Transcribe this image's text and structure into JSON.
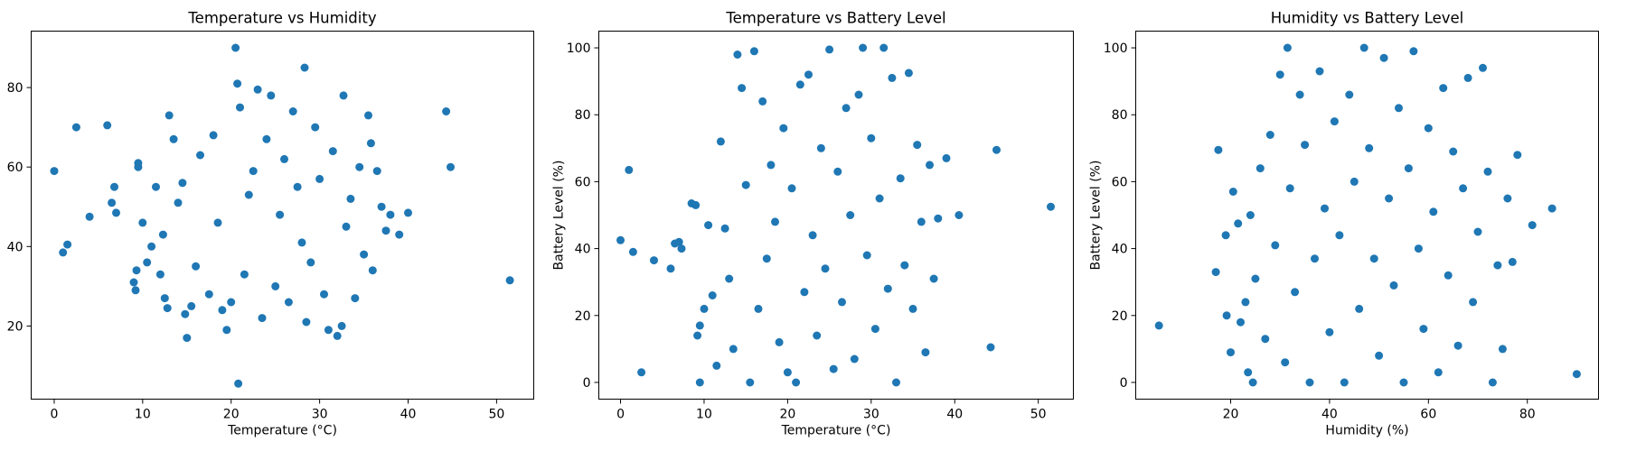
{
  "chart_data": [
    {
      "type": "scatter",
      "title": "Temperature vs Humidity",
      "xlabel": "Temperature (°C)",
      "ylabel": "Humidity (%)",
      "xlim": [
        -2.6,
        54.2
      ],
      "ylim": [
        1.6,
        94.2
      ],
      "xticks": [
        0,
        10,
        20,
        30,
        40,
        50
      ],
      "yticks": [
        20,
        40,
        60,
        80
      ],
      "color": "#1f77b4",
      "series": [
        {
          "name": "Temperature vs Humidity",
          "points": [
            [
              0,
              59
            ],
            [
              1,
              38.5
            ],
            [
              1.5,
              40.5
            ],
            [
              2.5,
              70
            ],
            [
              4,
              47.5
            ],
            [
              6,
              70.5
            ],
            [
              6.5,
              51
            ],
            [
              6.8,
              55
            ],
            [
              7,
              48.5
            ],
            [
              9,
              31
            ],
            [
              9.2,
              29
            ],
            [
              9.3,
              34
            ],
            [
              9.5,
              60
            ],
            [
              9.5,
              61
            ],
            [
              10,
              46
            ],
            [
              10.5,
              36
            ],
            [
              11,
              40
            ],
            [
              11.5,
              55
            ],
            [
              12,
              33
            ],
            [
              12.3,
              43
            ],
            [
              12.5,
              27
            ],
            [
              12.8,
              24.5
            ],
            [
              13,
              73
            ],
            [
              13.5,
              67
            ],
            [
              14,
              51
            ],
            [
              14.5,
              56
            ],
            [
              14.8,
              23
            ],
            [
              15,
              17
            ],
            [
              15.5,
              25
            ],
            [
              16,
              35
            ],
            [
              16.5,
              63
            ],
            [
              17.5,
              28
            ],
            [
              18,
              68
            ],
            [
              18.5,
              46
            ],
            [
              19,
              24
            ],
            [
              19.5,
              19
            ],
            [
              20,
              26
            ],
            [
              20.5,
              90
            ],
            [
              20.7,
              81
            ],
            [
              20.8,
              5.5
            ],
            [
              21,
              75
            ],
            [
              21.5,
              33
            ],
            [
              22,
              53
            ],
            [
              22.5,
              59
            ],
            [
              23,
              79.5
            ],
            [
              23.5,
              22
            ],
            [
              24,
              67
            ],
            [
              24.5,
              78
            ],
            [
              25,
              30
            ],
            [
              25.5,
              48
            ],
            [
              26,
              62
            ],
            [
              26.5,
              26
            ],
            [
              27,
              74
            ],
            [
              27.5,
              55
            ],
            [
              28,
              41
            ],
            [
              28.3,
              85
            ],
            [
              28.5,
              21
            ],
            [
              29,
              36
            ],
            [
              29.5,
              70
            ],
            [
              30,
              57
            ],
            [
              30.5,
              28
            ],
            [
              31,
              19
            ],
            [
              31.5,
              64
            ],
            [
              32,
              17.5
            ],
            [
              32.5,
              20
            ],
            [
              32.7,
              78
            ],
            [
              33,
              45
            ],
            [
              33.5,
              52
            ],
            [
              34,
              27
            ],
            [
              34.5,
              60
            ],
            [
              35,
              38
            ],
            [
              35.5,
              73
            ],
            [
              35.8,
              66
            ],
            [
              36,
              34
            ],
            [
              36.5,
              59
            ],
            [
              37,
              50
            ],
            [
              37.5,
              44
            ],
            [
              38,
              48
            ],
            [
              39,
              43
            ],
            [
              40,
              48.5
            ],
            [
              44.3,
              74
            ],
            [
              44.8,
              60
            ],
            [
              51.5,
              31.5
            ]
          ]
        }
      ]
    },
    {
      "type": "scatter",
      "title": "Temperature vs Battery Level",
      "xlabel": "Temperature (°C)",
      "ylabel": "Battery Level (%)",
      "xlim": [
        -2.6,
        54.2
      ],
      "ylim": [
        -5,
        105
      ],
      "xticks": [
        0,
        10,
        20,
        30,
        40,
        50
      ],
      "yticks": [
        0,
        20,
        40,
        60,
        80,
        100
      ],
      "color": "#1f77b4",
      "series": [
        {
          "name": "Temperature vs Battery Level",
          "points": [
            [
              0,
              42.5
            ],
            [
              1,
              63.5
            ],
            [
              1.5,
              39
            ],
            [
              2.5,
              3
            ],
            [
              4,
              36.5
            ],
            [
              6,
              34
            ],
            [
              6.5,
              41.5
            ],
            [
              7,
              42
            ],
            [
              7.3,
              40
            ],
            [
              8.5,
              53.5
            ],
            [
              9,
              53
            ],
            [
              9.2,
              14
            ],
            [
              9.5,
              17
            ],
            [
              9.5,
              0
            ],
            [
              10,
              22
            ],
            [
              10.5,
              47
            ],
            [
              11,
              26
            ],
            [
              11.5,
              5
            ],
            [
              12,
              72
            ],
            [
              12.5,
              46
            ],
            [
              13,
              31
            ],
            [
              13.5,
              10
            ],
            [
              14,
              98
            ],
            [
              14.5,
              88
            ],
            [
              15,
              59
            ],
            [
              15.5,
              0
            ],
            [
              16,
              99
            ],
            [
              16.5,
              22
            ],
            [
              17,
              84
            ],
            [
              17.5,
              37
            ],
            [
              18,
              65
            ],
            [
              18.5,
              48
            ],
            [
              19,
              12
            ],
            [
              19.5,
              76
            ],
            [
              20,
              3
            ],
            [
              20.5,
              58
            ],
            [
              21,
              0
            ],
            [
              21.5,
              89
            ],
            [
              22,
              27
            ],
            [
              22.5,
              92
            ],
            [
              23,
              44
            ],
            [
              23.5,
              14
            ],
            [
              24,
              70
            ],
            [
              24.5,
              34
            ],
            [
              25,
              99.5
            ],
            [
              25.5,
              4
            ],
            [
              26,
              63
            ],
            [
              26.5,
              24
            ],
            [
              27,
              82
            ],
            [
              27.5,
              50
            ],
            [
              28,
              7
            ],
            [
              28.5,
              86
            ],
            [
              29,
              100
            ],
            [
              29.5,
              38
            ],
            [
              30,
              73
            ],
            [
              30.5,
              16
            ],
            [
              31,
              55
            ],
            [
              31.5,
              100
            ],
            [
              32,
              28
            ],
            [
              32.5,
              91
            ],
            [
              33,
              0
            ],
            [
              33.5,
              61
            ],
            [
              34,
              35
            ],
            [
              34.5,
              92.5
            ],
            [
              35,
              22
            ],
            [
              35.5,
              71
            ],
            [
              36,
              48
            ],
            [
              36.5,
              9
            ],
            [
              37,
              65
            ],
            [
              37.5,
              31
            ],
            [
              38,
              49
            ],
            [
              39,
              67
            ],
            [
              40.5,
              50
            ],
            [
              44.3,
              10.5
            ],
            [
              45,
              69.5
            ],
            [
              51.5,
              52.5
            ]
          ]
        }
      ]
    },
    {
      "type": "scatter",
      "title": "Humidity vs Battery Level",
      "xlabel": "Humidity (%)",
      "ylabel": "Battery Level (%)",
      "xlim": [
        0.8,
        94.4
      ],
      "ylim": [
        -5,
        105
      ],
      "xticks": [
        20,
        40,
        60,
        80
      ],
      "yticks": [
        0,
        20,
        40,
        60,
        80,
        100
      ],
      "color": "#1f77b4",
      "series": [
        {
          "name": "Humidity vs Battery Level",
          "points": [
            [
              5.5,
              17
            ],
            [
              17,
              33
            ],
            [
              17.5,
              69.5
            ],
            [
              19,
              44
            ],
            [
              19.2,
              20
            ],
            [
              20,
              9
            ],
            [
              20.5,
              57
            ],
            [
              21.5,
              47.5
            ],
            [
              22,
              18
            ],
            [
              23,
              24
            ],
            [
              23.5,
              3
            ],
            [
              24,
              50
            ],
            [
              24.5,
              0
            ],
            [
              25,
              31
            ],
            [
              26,
              64
            ],
            [
              27,
              13
            ],
            [
              28,
              74
            ],
            [
              29,
              41
            ],
            [
              30,
              92
            ],
            [
              31,
              6
            ],
            [
              31.5,
              100
            ],
            [
              32,
              58
            ],
            [
              33,
              27
            ],
            [
              34,
              86
            ],
            [
              35,
              71
            ],
            [
              36,
              0
            ],
            [
              37,
              37
            ],
            [
              38,
              93
            ],
            [
              39,
              52
            ],
            [
              40,
              15
            ],
            [
              41,
              78
            ],
            [
              42,
              44
            ],
            [
              43,
              0
            ],
            [
              44,
              86
            ],
            [
              45,
              60
            ],
            [
              46,
              22
            ],
            [
              47,
              100
            ],
            [
              48,
              70
            ],
            [
              49,
              37
            ],
            [
              50,
              8
            ],
            [
              51,
              97
            ],
            [
              52,
              55
            ],
            [
              53,
              29
            ],
            [
              54,
              82
            ],
            [
              55,
              0
            ],
            [
              56,
              64
            ],
            [
              57,
              99
            ],
            [
              58,
              40
            ],
            [
              59,
              16
            ],
            [
              60,
              76
            ],
            [
              61,
              51
            ],
            [
              62,
              3
            ],
            [
              63,
              88
            ],
            [
              64,
              32
            ],
            [
              65,
              69
            ],
            [
              66,
              11
            ],
            [
              67,
              58
            ],
            [
              68,
              91
            ],
            [
              69,
              24
            ],
            [
              70,
              45
            ],
            [
              71,
              94
            ],
            [
              72,
              63
            ],
            [
              73,
              0
            ],
            [
              74,
              35
            ],
            [
              75,
              10
            ],
            [
              76,
              55
            ],
            [
              77,
              36
            ],
            [
              78,
              68
            ],
            [
              81,
              47
            ],
            [
              85,
              52
            ],
            [
              90,
              2.5
            ]
          ]
        }
      ]
    }
  ]
}
